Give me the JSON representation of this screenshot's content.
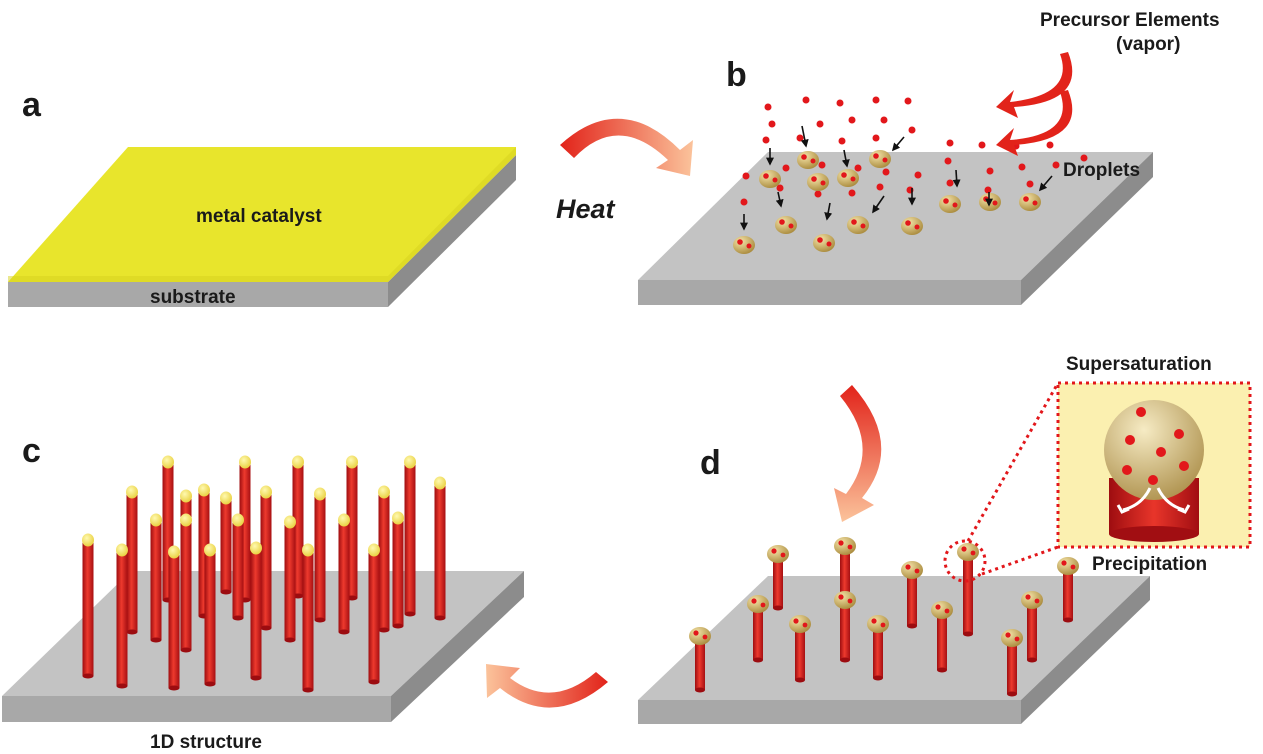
{
  "panels": {
    "a": {
      "letter": "a",
      "catalyst_label": "metal catalyst",
      "substrate_label": "substrate"
    },
    "b": {
      "letter": "b",
      "vapor_label_line1": "Precursor Elements",
      "vapor_label_line2": "(vapor)",
      "droplets_label": "Droplets"
    },
    "c": {
      "letter": "c",
      "structure_label": "1D structure"
    },
    "d": {
      "letter": "d",
      "supersaturation_label": "Supersaturation",
      "precipitation_label": "Precipitation"
    }
  },
  "transitions": {
    "a_to_b_label": "Heat"
  },
  "colors": {
    "catalyst": "#e8e52c",
    "substrate_top": "#c3c3c3",
    "substrate_front": "#a8a8a8",
    "substrate_side": "#8c8c8c",
    "nanowire": "#d41e22",
    "droplet": "#c4a95d",
    "precursor_dot": "#e2171b",
    "arrow_red": "#e8261e",
    "arrow_light": "#f8b88c",
    "inset_bg": "#fbf0b0"
  }
}
